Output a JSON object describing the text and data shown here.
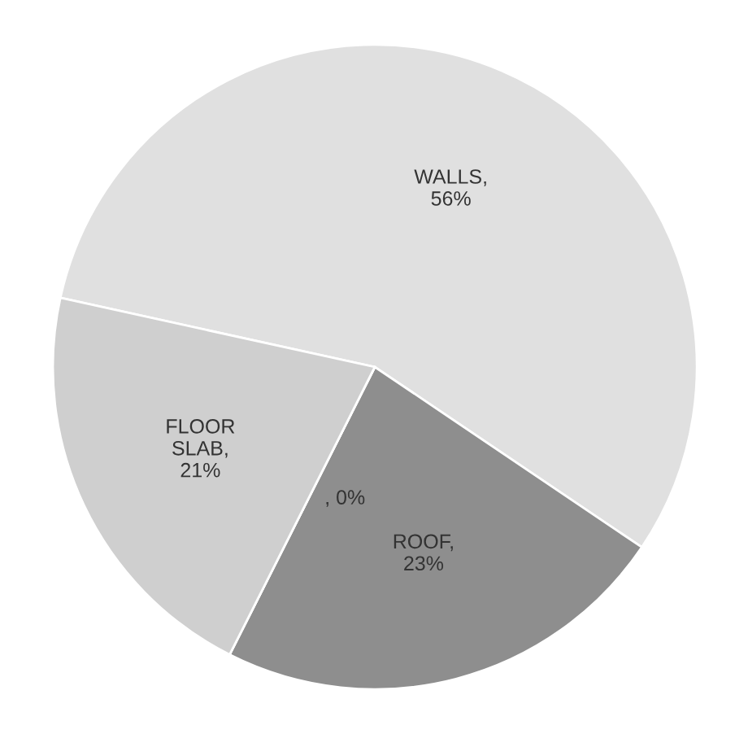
{
  "chart_data": {
    "type": "pie",
    "categories": [
      "WALLS",
      "ROOF",
      null,
      "FLOOR SLAB"
    ],
    "values": [
      56,
      23,
      0,
      21
    ],
    "value_labels": [
      ", 56%",
      ", 23%",
      ", 0%",
      ", 21%"
    ],
    "colors": [
      "#e0e0e0",
      "#8e8e8e",
      "#b0b0b0",
      "#cfcfcf"
    ]
  }
}
